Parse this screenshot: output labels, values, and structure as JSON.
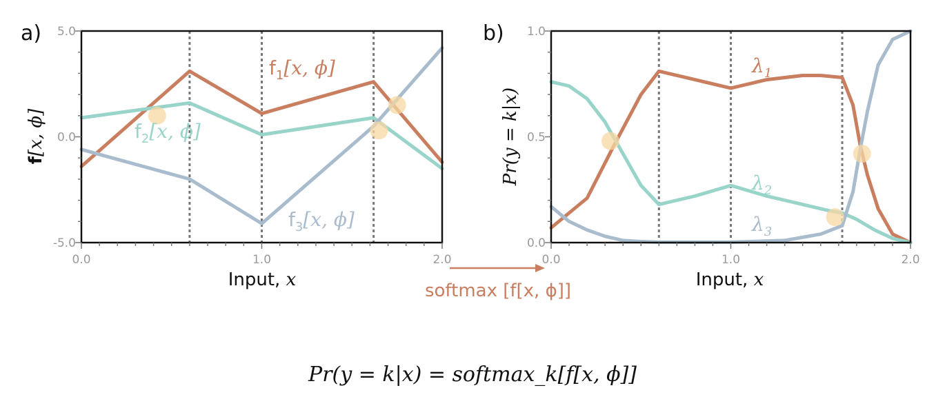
{
  "colors": {
    "series1": "#c97f5f",
    "series2": "#98d4c9",
    "series3": "#a9bccd",
    "highlight": "#f7d7a3",
    "divider": "#777777",
    "softmax_arrow": "#c97f5f"
  },
  "panel_a": {
    "letter": "a)",
    "xlabel_word": "Input, ",
    "xlabel_var": "x",
    "ylabel": "f[x, ϕ]",
    "series_labels": [
      {
        "name": "f",
        "sub": "1",
        "rest": "[x, ϕ]"
      },
      {
        "name": "f",
        "sub": "2",
        "rest": "[x, ϕ]"
      },
      {
        "name": "f",
        "sub": "3",
        "rest": "[x, ϕ]"
      }
    ]
  },
  "panel_b": {
    "letter": "b)",
    "xlabel_word": "Input, ",
    "xlabel_var": "x",
    "ylabel": "Pr(y = k|x)",
    "series_labels": [
      {
        "name": "λ",
        "sub": "1"
      },
      {
        "name": "λ",
        "sub": "2"
      },
      {
        "name": "λ",
        "sub": "3"
      }
    ]
  },
  "softmax_label": "softmax [f[x, ϕ]]",
  "formula": "Pr(y = k|x) = softmax_k[f[x, ϕ]]",
  "chart_data": [
    {
      "type": "line",
      "xlim": [
        0.0,
        2.0
      ],
      "ylim": [
        -5.0,
        5.0
      ],
      "xticks": [
        "0.0",
        "1.0",
        "2.0"
      ],
      "yticks": [
        "-5.0",
        "0.0",
        "5.0"
      ],
      "breakpoints": [
        0.6,
        1.0,
        1.62
      ],
      "series": [
        {
          "x": [
            0.0,
            0.6,
            1.0,
            1.62,
            2.0
          ],
          "values": [
            -1.4,
            3.1,
            1.1,
            2.6,
            -1.2
          ]
        },
        {
          "x": [
            0.0,
            0.6,
            1.0,
            1.62,
            2.0
          ],
          "values": [
            0.9,
            1.6,
            0.1,
            0.9,
            -1.5
          ]
        },
        {
          "x": [
            0.0,
            0.6,
            1.0,
            1.62,
            2.0
          ],
          "values": [
            -0.6,
            -2.0,
            -4.1,
            0.5,
            4.2
          ]
        }
      ],
      "highlight_points": [
        {
          "x": 0.42,
          "y": 1.0
        },
        {
          "x": 1.65,
          "y": 0.3
        },
        {
          "x": 1.75,
          "y": 1.5
        }
      ]
    },
    {
      "type": "line",
      "xlim": [
        0.0,
        2.0
      ],
      "ylim": [
        0.0,
        1.0
      ],
      "xticks": [
        "0.0",
        "1.0",
        "2.0"
      ],
      "yticks": [
        "0.0",
        "0.5",
        "1.0"
      ],
      "breakpoints": [
        0.6,
        1.0,
        1.62
      ],
      "series": [
        {
          "x": [
            0.0,
            0.2,
            0.35,
            0.5,
            0.6,
            0.8,
            1.0,
            1.2,
            1.4,
            1.5,
            1.62,
            1.68,
            1.72,
            1.76,
            1.82,
            1.9,
            2.0
          ],
          "values": [
            0.07,
            0.21,
            0.46,
            0.7,
            0.81,
            0.77,
            0.73,
            0.77,
            0.79,
            0.79,
            0.78,
            0.65,
            0.46,
            0.32,
            0.16,
            0.04,
            0.0
          ]
        },
        {
          "x": [
            0.0,
            0.1,
            0.2,
            0.3,
            0.4,
            0.5,
            0.6,
            0.8,
            1.0,
            1.2,
            1.4,
            1.55,
            1.62,
            1.7,
            1.8,
            1.9,
            2.0
          ],
          "values": [
            0.76,
            0.74,
            0.68,
            0.57,
            0.42,
            0.27,
            0.18,
            0.22,
            0.27,
            0.22,
            0.18,
            0.15,
            0.14,
            0.11,
            0.06,
            0.02,
            0.0
          ]
        },
        {
          "x": [
            0.0,
            0.1,
            0.2,
            0.3,
            0.4,
            0.5,
            0.6,
            1.0,
            1.3,
            1.5,
            1.62,
            1.68,
            1.72,
            1.76,
            1.82,
            1.9,
            2.0
          ],
          "values": [
            0.17,
            0.1,
            0.06,
            0.03,
            0.01,
            0.005,
            0.002,
            0.002,
            0.01,
            0.04,
            0.08,
            0.24,
            0.44,
            0.62,
            0.84,
            0.96,
            1.0
          ]
        }
      ],
      "highlight_points": [
        {
          "x": 0.33,
          "y": 0.48
        },
        {
          "x": 1.58,
          "y": 0.12
        },
        {
          "x": 1.73,
          "y": 0.42
        }
      ]
    }
  ]
}
